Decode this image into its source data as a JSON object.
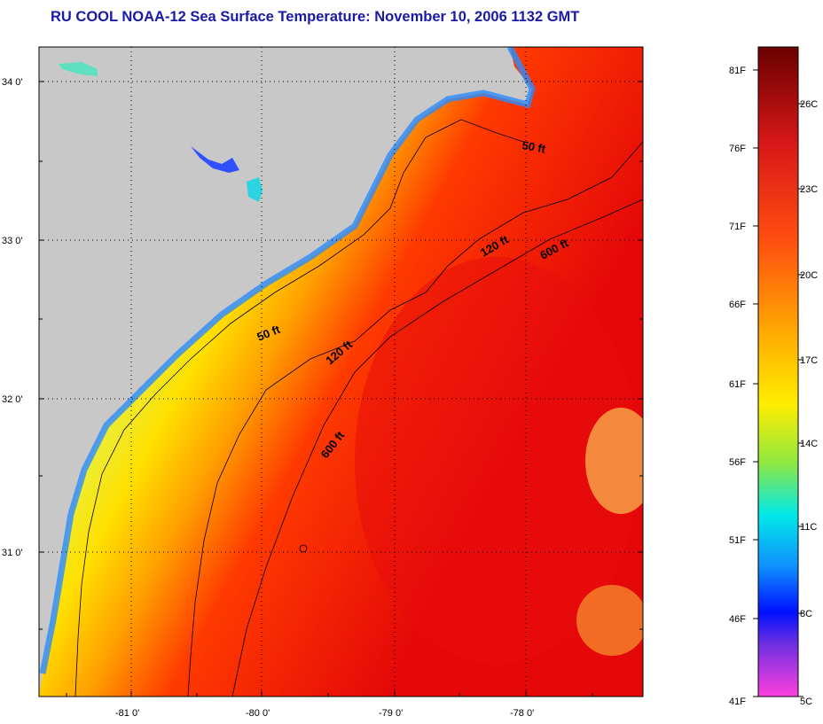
{
  "title": "RU COOL  NOAA-12  Sea Surface Temperature:  November 10, 2006 1132 GMT",
  "map": {
    "lat_labels": [
      "34 0'",
      "33 0'",
      "32 0'",
      "31 0'"
    ],
    "lon_labels": [
      "-81 0'",
      "-80 0'",
      "-79 0'",
      "-78 0'"
    ],
    "contours": {
      "label_50": "50 ft",
      "label_120": "120 ft",
      "label_600": "600 ft"
    }
  },
  "colorbar": {
    "fahrenheit": [
      "81F",
      "76F",
      "71F",
      "66F",
      "61F",
      "56F",
      "51F",
      "46F",
      "41F"
    ],
    "celsius": [
      "26C",
      "23C",
      "20C",
      "17C",
      "14C",
      "11C",
      "8C",
      "5C"
    ]
  },
  "colors": {
    "land": "#c8c8c8",
    "title": "#1a1aa6",
    "cb_81": "#7a0000",
    "cb_76": "#d81818",
    "cb_71": "#ff6a10",
    "cb_66": "#ffe800",
    "cb_61": "#90e840",
    "cb_56": "#00e8ff",
    "cb_51": "#1070ff",
    "cb_46": "#0000e8",
    "cb_41": "#ff40e0"
  }
}
